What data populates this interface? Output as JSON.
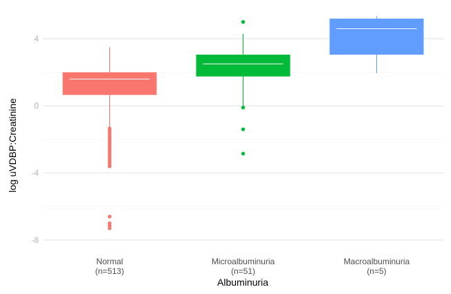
{
  "chart_data": {
    "type": "boxplot",
    "xlabel": "Albuminuria",
    "ylabel": "log uVDBP:Creatinine",
    "ylim": [
      -8.2,
      5.3
    ],
    "yticks": [
      -8,
      -4,
      0,
      4
    ],
    "ytick_labels": [
      "-8",
      "-4",
      "0",
      "4"
    ],
    "minor_gridlines": [
      -6,
      -2,
      2
    ],
    "grid": true,
    "legend": "none",
    "categories": [
      {
        "name": "Normal",
        "count_label": "(n=513)",
        "color": "#F8766D",
        "whisker_low": -1.3,
        "q1": 0.65,
        "median": 1.6,
        "q3": 2.0,
        "whisker_high": 3.5,
        "outliers": [
          -1.35,
          -1.5,
          -1.65,
          -1.8,
          -1.95,
          -2.1,
          -2.25,
          -2.4,
          -2.55,
          -2.7,
          -2.85,
          -3.0,
          -3.15,
          -3.3,
          -3.45,
          -3.6,
          -6.6,
          -7.0,
          -7.15,
          -7.3
        ]
      },
      {
        "name": "Microalbuminuria",
        "count_label": "(n=51)",
        "color": "#00BA38",
        "whisker_low": -0.1,
        "q1": 1.75,
        "median": 2.5,
        "q3": 3.05,
        "whisker_high": 4.3,
        "outliers": [
          5.0,
          -0.1,
          -1.4,
          -2.85
        ]
      },
      {
        "name": "Macroalbuminuria",
        "count_label": "(n=5)",
        "color": "#619CFF",
        "whisker_low": 1.95,
        "q1": 3.05,
        "median": 4.6,
        "q3": 5.2,
        "whisker_high": 5.35,
        "outliers": []
      }
    ]
  }
}
